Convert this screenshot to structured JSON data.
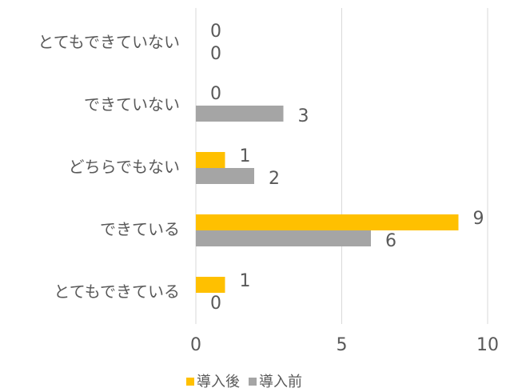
{
  "chart_data": {
    "type": "bar",
    "orientation": "horizontal",
    "categories": [
      "とてもできていない",
      "できていない",
      "どちらでもない",
      "できている",
      "とてもできている"
    ],
    "series": [
      {
        "name": "導入後",
        "color": "#FFC000",
        "values": [
          0,
          0,
          1,
          9,
          1
        ]
      },
      {
        "name": "導入前",
        "color": "#A5A5A5",
        "values": [
          0,
          3,
          2,
          6,
          0
        ]
      }
    ],
    "xlim": [
      0,
      10
    ],
    "xticks": [
      0,
      5,
      10
    ],
    "grid": true,
    "legend": "bottom"
  }
}
